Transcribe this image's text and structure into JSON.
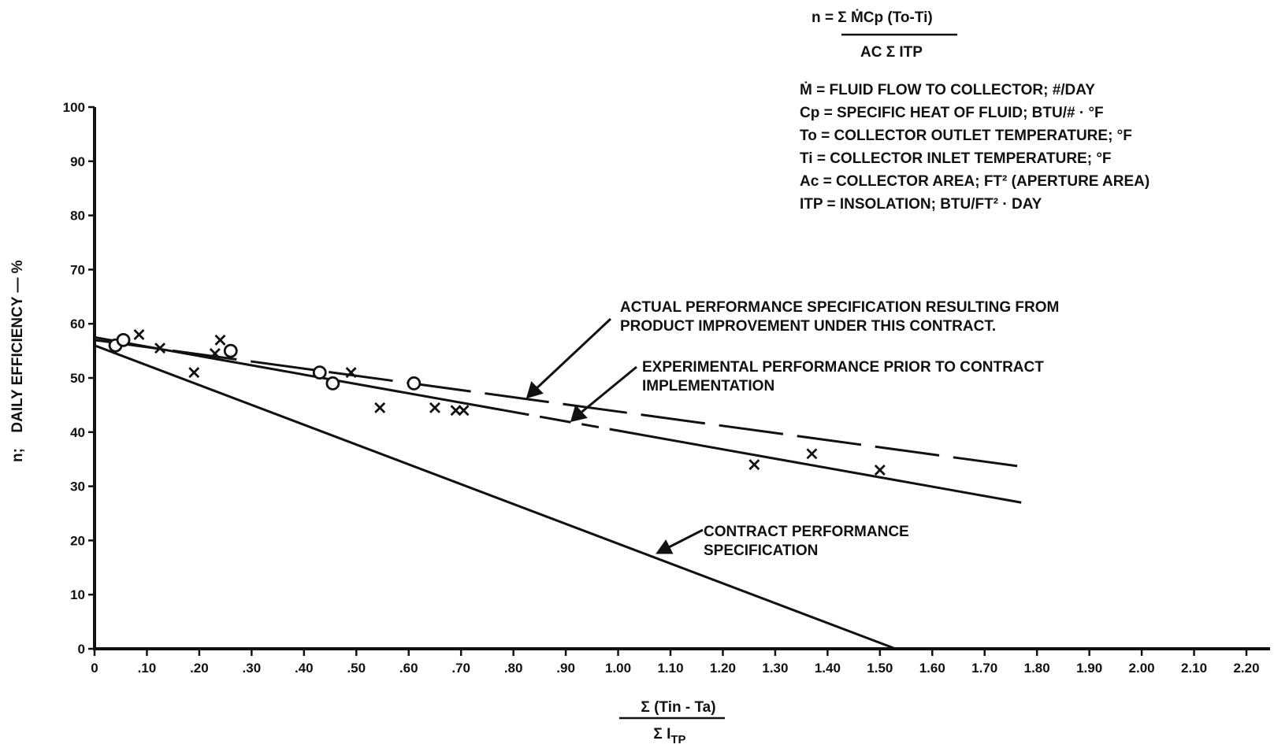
{
  "chart_data": {
    "type": "scatter",
    "xlabel_numerator": "Σ (Tin - Ta)",
    "xlabel_denominator": "Σ I",
    "xlabel_denominator_sub": "TP",
    "ylabel_symbol": "n;",
    "ylabel": "DAILY EFFICIENCY — %",
    "xlim": [
      0,
      2.2
    ],
    "ylim": [
      0,
      100
    ],
    "x_ticks": [
      0,
      0.1,
      0.2,
      0.3,
      0.4,
      0.5,
      0.6,
      0.7,
      0.8,
      0.9,
      1.0,
      1.1,
      1.2,
      1.3,
      1.4,
      1.5,
      1.6,
      1.7,
      1.8,
      1.9,
      2.0,
      2.1,
      2.2
    ],
    "x_tick_labels": [
      "0",
      ".10",
      ".20",
      ".30",
      ".40",
      ".50",
      ".60",
      ".70",
      ".80",
      ".90",
      "1.00",
      "1.10",
      "1.20",
      "1.30",
      "1.40",
      "1.50",
      "1.60",
      "1.70",
      "1.80",
      "1.90",
      "2.00",
      "2.10",
      "2.20"
    ],
    "y_ticks": [
      0,
      10,
      20,
      30,
      40,
      50,
      60,
      70,
      80,
      90,
      100
    ],
    "y_tick_labels": [
      "0",
      "10",
      "20",
      "30",
      "40",
      "50",
      "60",
      "70",
      "80",
      "90",
      "100"
    ],
    "grid": false,
    "series": [
      {
        "marker": "circle",
        "points": [
          [
            0.04,
            56
          ],
          [
            0.055,
            57
          ],
          [
            0.26,
            55
          ],
          [
            0.43,
            51
          ],
          [
            0.455,
            49
          ],
          [
            0.61,
            49
          ]
        ]
      },
      {
        "marker": "x",
        "points": [
          [
            0.085,
            58
          ],
          [
            0.125,
            55.5
          ],
          [
            0.19,
            51
          ],
          [
            0.23,
            54.5
          ],
          [
            0.24,
            57
          ],
          [
            0.49,
            51
          ],
          [
            0.545,
            44.5
          ],
          [
            0.65,
            44.5
          ],
          [
            0.69,
            44
          ],
          [
            0.705,
            44
          ],
          [
            1.26,
            34
          ],
          [
            1.37,
            36
          ],
          [
            1.5,
            33
          ]
        ]
      }
    ],
    "lines": [
      {
        "id": "actual",
        "style": "long-dash",
        "points": [
          [
            0,
            57
          ],
          [
            1.78,
            33.5
          ]
        ]
      },
      {
        "id": "experimental",
        "style": "solid-dash-dot",
        "points": [
          [
            0,
            57.5
          ],
          [
            1.77,
            27
          ]
        ]
      },
      {
        "id": "contract",
        "style": "solid",
        "points": [
          [
            0,
            56
          ],
          [
            1.53,
            0
          ]
        ]
      }
    ],
    "annotations": [
      {
        "id": "actual",
        "lines": [
          "ACTUAL PERFORMANCE SPECIFICATION RESULTING FROM",
          "PRODUCT IMPROVEMENT UNDER THIS CONTRACT."
        ]
      },
      {
        "id": "experimental",
        "lines": [
          "EXPERIMENTAL PERFORMANCE PRIOR TO CONTRACT",
          "IMPLEMENTATION"
        ]
      },
      {
        "id": "contract",
        "lines": [
          "CONTRACT PERFORMANCE",
          "SPECIFICATION"
        ]
      }
    ],
    "formula": {
      "numerator": "n = Σ ṀCp (To-Ti)",
      "denominator": "AC Σ ITP"
    },
    "legend_lines": [
      "Ṁ = FLUID FLOW TO COLLECTOR; #/DAY",
      "Cp = SPECIFIC HEAT OF FLUID; BTU/# · °F",
      "To = COLLECTOR OUTLET TEMPERATURE; °F",
      "Ti = COLLECTOR INLET TEMPERATURE; °F",
      "Ac = COLLECTOR AREA; FT²     (APERTURE AREA)",
      "ITP = INSOLATION; BTU/FT² · DAY"
    ]
  }
}
